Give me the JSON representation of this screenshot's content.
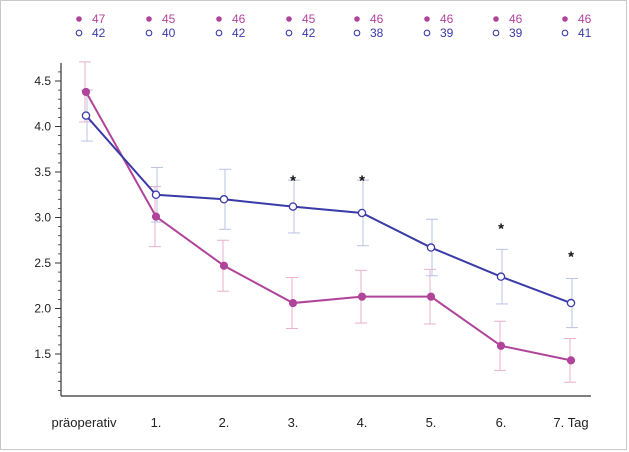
{
  "chart_data": {
    "type": "line",
    "categories": [
      "präoperativ",
      "1.",
      "2.",
      "3.",
      "4.",
      "5.",
      "6.",
      "7. Tag"
    ],
    "yticks": [
      "4.5",
      "4.0",
      "3.5",
      "3.0",
      "2.5",
      "2.0",
      "1.5"
    ],
    "ylim": [
      1.05,
      4.75
    ],
    "grid": false,
    "colors": {
      "filled": "#b0449a",
      "open": "#3a3aa8",
      "error_filled": "#e8b0cc",
      "error_open": "#b9c4e4",
      "axis": "#333333"
    },
    "series": [
      {
        "marker": "filled-circle",
        "values": [
          4.38,
          3.01,
          2.47,
          2.06,
          2.13,
          2.13,
          1.59,
          1.43
        ],
        "error": [
          0.33,
          0.33,
          0.28,
          0.28,
          0.29,
          0.3,
          0.27,
          0.24
        ],
        "n": [
          "47",
          "45",
          "46",
          "45",
          "46",
          "46",
          "46",
          "46"
        ],
        "n_symbol": "●"
      },
      {
        "marker": "open-circle",
        "values": [
          4.12,
          3.25,
          3.2,
          3.12,
          3.05,
          2.67,
          2.35,
          2.06
        ],
        "error": [
          0.28,
          0.3,
          0.33,
          0.29,
          0.36,
          0.31,
          0.3,
          0.27
        ],
        "n": [
          "42",
          "40",
          "42",
          "42",
          "38",
          "39",
          "39",
          "41"
        ],
        "n_symbol": "○"
      }
    ],
    "significance": [
      {
        "index": 3,
        "mark": "*",
        "value": 3.42
      },
      {
        "index": 4,
        "mark": "*",
        "value": 3.42
      },
      {
        "index": 6,
        "mark": "*",
        "value": 2.89
      },
      {
        "index": 7,
        "mark": "*",
        "value": 2.58
      }
    ]
  }
}
